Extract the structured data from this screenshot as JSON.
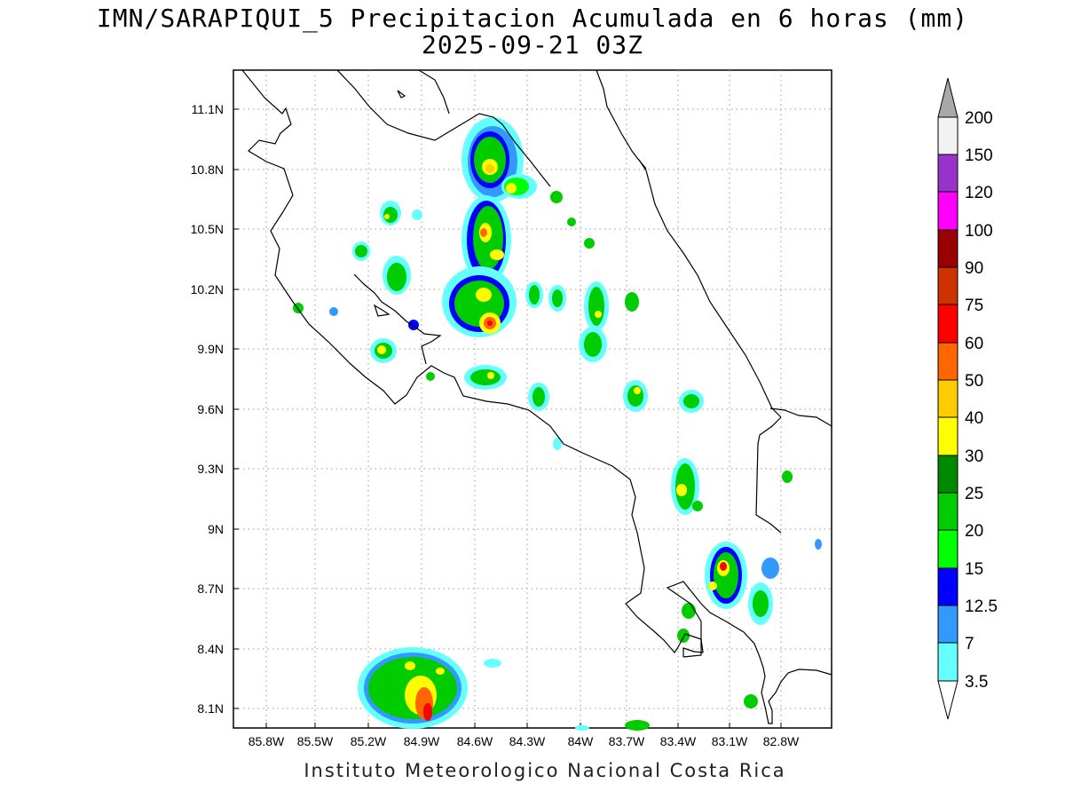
{
  "title": {
    "line1": "IMN/SARAPIQUI_5 Precipitacion Acumulada en 6 horas (mm)",
    "line2": "2025-09-21 03Z"
  },
  "footer": "Instituto Meteorologico Nacional Costa Rica",
  "map": {
    "region": "Costa Rica",
    "lon_range": [
      -86.0,
      -82.5
    ],
    "lat_range": [
      8.0,
      11.2
    ],
    "lon_ticks": [
      "85.8W",
      "85.5W",
      "85.2W",
      "84.9W",
      "84.6W",
      "84.3W",
      "84W",
      "83.7W",
      "83.4W",
      "83.1W",
      "82.8W"
    ],
    "lat_ticks": [
      "11.1N",
      "10.8N",
      "10.5N",
      "10.2N",
      "9.9N",
      "9.6N",
      "9.3N",
      "9N",
      "8.7N",
      "8.4N",
      "8.1N"
    ],
    "gridlines": "dotted"
  },
  "colorbar": {
    "labels": [
      "3.5",
      "7",
      "12.5",
      "15",
      "20",
      "25",
      "30",
      "40",
      "50",
      "60",
      "75",
      "90",
      "100",
      "120",
      "150",
      "200"
    ],
    "colors": [
      "#ffffff",
      "#66ffff",
      "#3399ff",
      "#0000ff",
      "#00ff00",
      "#00cc00",
      "#008800",
      "#ffff00",
      "#ffcc00",
      "#ff6600",
      "#ff0000",
      "#cc3300",
      "#990000",
      "#ff00ff",
      "#9933cc",
      "#f2f2f2",
      "#a9a9a9"
    ]
  },
  "legend_ref": {
    "c1": "#66ffff",
    "c2": "#3399ff",
    "c3": "#0000ff",
    "c4": "#00ff00",
    "c5": "#00cc00",
    "c6": "#008800",
    "c7": "#ffff00",
    "c8": "#ffcc00",
    "c9": "#ff6600",
    "c10": "#ff0000"
  }
}
